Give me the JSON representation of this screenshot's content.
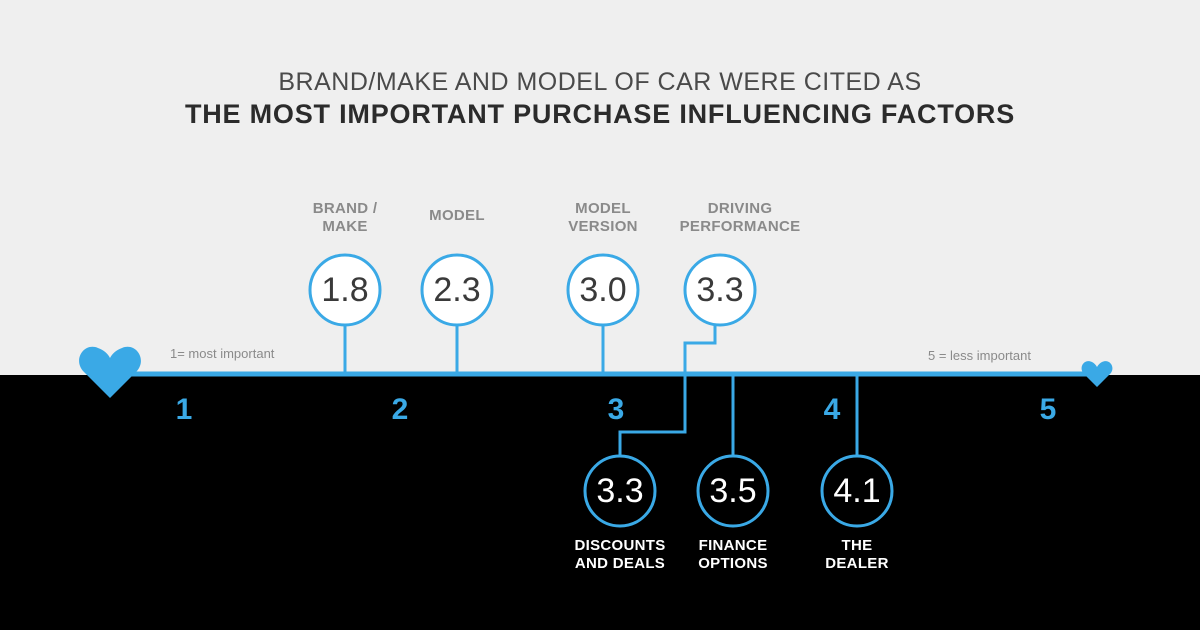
{
  "headline": {
    "line1": "BRAND/MAKE AND MODEL OF CAR WERE CITED AS",
    "line2": "THE MOST IMPORTANT PURCHASE INFLUENCING FACTORS"
  },
  "scale": {
    "ticks": [
      "1",
      "2",
      "3",
      "4",
      "5"
    ],
    "min_note": "1= most important",
    "max_note": "5 = less important"
  },
  "factors": [
    {
      "label": "BRAND /\nMAKE",
      "score": "1.8"
    },
    {
      "label": "MODEL",
      "score": "2.3"
    },
    {
      "label": "MODEL\nVERSION",
      "score": "3.0"
    },
    {
      "label": "DRIVING\nPERFORMANCE",
      "score": "3.3"
    },
    {
      "label": "DISCOUNTS\nAND DEALS",
      "score": "3.3"
    },
    {
      "label": "FINANCE\nOPTIONS",
      "score": "3.5"
    },
    {
      "label": "THE\nDEALER",
      "score": "4.1"
    }
  ],
  "colors": {
    "accent": "#3aa9e6",
    "top_background": "#efefef",
    "bottom_background": "#000000"
  }
}
